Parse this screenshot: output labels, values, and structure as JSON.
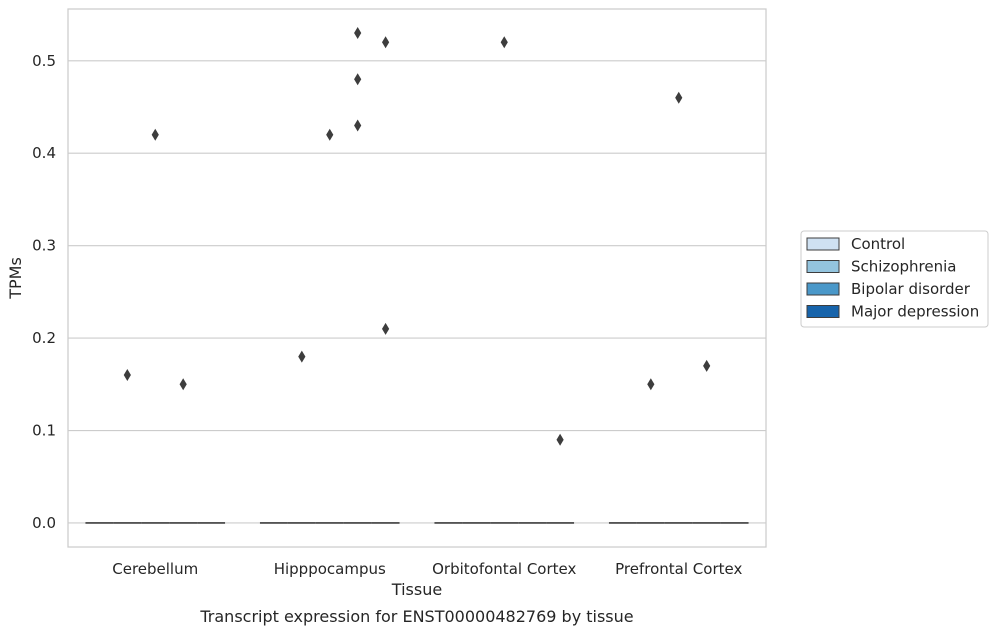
{
  "chart_data": {
    "type": "box",
    "title": "",
    "caption": "Transcript expression for ENST00000482769 by tissue",
    "xlabel": "Tissue",
    "ylabel": "TPMs",
    "ylim": [
      -0.026,
      0.556
    ],
    "yticks": [
      0.0,
      0.1,
      0.2,
      0.3,
      0.4,
      0.5
    ],
    "ytick_labels": [
      "0.0",
      "0.1",
      "0.2",
      "0.3",
      "0.4",
      "0.5"
    ],
    "grid": "horizontal",
    "legend_position": "right",
    "categories": [
      "Cerebellum",
      "Hipppocampus",
      "Orbitofontal Cortex",
      "Prefrontal Cortex"
    ],
    "series": [
      {
        "name": "Control",
        "color": "#cfe1f2",
        "median": [
          0,
          0,
          0,
          0
        ],
        "outliers": [
          [],
          [],
          [],
          []
        ]
      },
      {
        "name": "Schizophrenia",
        "color": "#93c4de",
        "median": [
          0,
          0,
          0,
          0
        ],
        "outliers": [
          [
            0.16
          ],
          [
            0.18
          ],
          [],
          [
            0.15
          ]
        ]
      },
      {
        "name": "Bipolar disorder",
        "color": "#4a98c9",
        "median": [
          0,
          0,
          0,
          0
        ],
        "outliers": [
          [
            0.42
          ],
          [
            0.42
          ],
          [
            0.52
          ],
          [
            0.46
          ]
        ]
      },
      {
        "name": "Major depression",
        "color": "#1764ab",
        "median": [
          0,
          0,
          0,
          0
        ],
        "outliers": [
          [
            0.15
          ],
          [
            0.43,
            0.48,
            0.53
          ],
          [],
          [
            0.17
          ]
        ]
      },
      {
        "name": "",
        "color": "#0b4083",
        "median": [
          0,
          0,
          0,
          0
        ],
        "outliers": [
          [],
          [
            0.21,
            0.52
          ],
          [
            0.09
          ],
          []
        ]
      }
    ]
  }
}
